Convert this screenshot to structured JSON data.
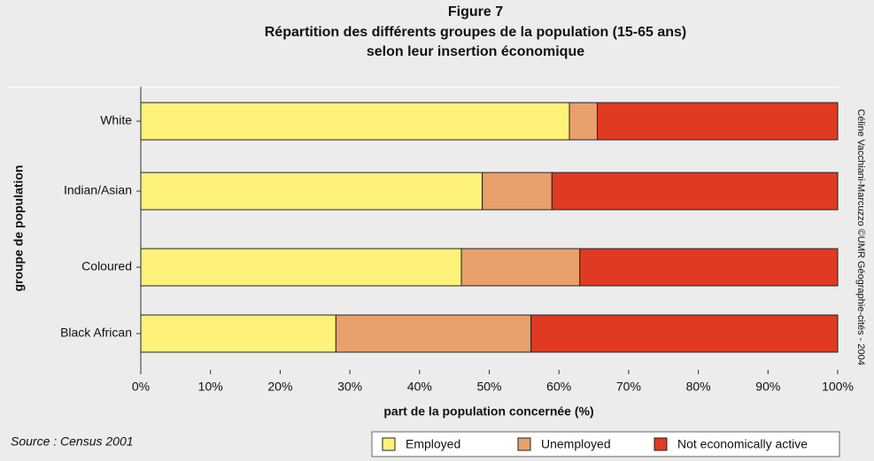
{
  "chart_data": {
    "type": "stacked-bar-horizontal",
    "title": [
      "Figure 7",
      "Répartition des différents groupes de la population (15-65 ans)",
      "selon leur insertion économique"
    ],
    "xlabel": "part de la population concernée (%)",
    "ylabel": "groupe de population",
    "source": "Source : Census 2001",
    "credit": "Céline Vacchiani-Marcuzzo ©UMR Géographie-cités - 2004",
    "categories": [
      "White",
      "Indian/Asian",
      "Coloured",
      "Black African"
    ],
    "series": [
      {
        "name": "Employed",
        "color": "#fff27a",
        "values": [
          61.5,
          49,
          46,
          28
        ]
      },
      {
        "name": "Unemployed",
        "color": "#e9a06b",
        "values": [
          4,
          10,
          17,
          28
        ]
      },
      {
        "name": "Not economically active",
        "color": "#e03a22",
        "values": [
          34.5,
          41,
          37,
          44
        ]
      }
    ],
    "xlim": [
      0,
      100
    ],
    "xticks": [
      {
        "value": 0,
        "label": "0%"
      },
      {
        "value": 10,
        "label": "10%"
      },
      {
        "value": 20,
        "label": "20%"
      },
      {
        "value": 30,
        "label": "30%"
      },
      {
        "value": 40,
        "label": "40%"
      },
      {
        "value": 50,
        "label": "50%"
      },
      {
        "value": 60,
        "label": "60%"
      },
      {
        "value": 70,
        "label": "70%"
      },
      {
        "value": 80,
        "label": "80%"
      },
      {
        "value": 90,
        "label": "90%"
      },
      {
        "value": 100,
        "label": "100%"
      }
    ]
  }
}
